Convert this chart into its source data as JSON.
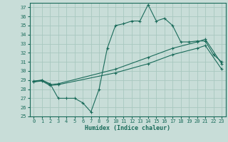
{
  "xlabel": "Humidex (Indice chaleur)",
  "xlim": [
    -0.5,
    23.5
  ],
  "ylim": [
    25,
    37.5
  ],
  "yticks": [
    25,
    26,
    27,
    28,
    29,
    30,
    31,
    32,
    33,
    34,
    35,
    36,
    37
  ],
  "xticks": [
    0,
    1,
    2,
    3,
    4,
    5,
    6,
    7,
    8,
    9,
    10,
    11,
    12,
    13,
    14,
    15,
    16,
    17,
    18,
    19,
    20,
    21,
    22,
    23
  ],
  "bg_color": "#c8ddd8",
  "grid_color": "#a8c8c0",
  "line_color": "#1a6b5a",
  "series1_x": [
    0,
    1,
    2,
    3,
    4,
    5,
    6,
    7,
    8,
    9,
    10,
    11,
    12,
    13,
    14,
    15,
    16,
    17,
    18,
    19,
    20,
    21,
    22,
    23
  ],
  "series1_y": [
    28.8,
    29.0,
    28.6,
    27.0,
    27.0,
    27.0,
    26.5,
    25.5,
    28.0,
    32.5,
    35.0,
    35.2,
    35.5,
    35.5,
    37.3,
    35.5,
    35.8,
    35.0,
    33.2,
    33.2,
    33.3,
    33.3,
    31.8,
    31.0
  ],
  "series2_x": [
    0,
    1,
    2,
    3,
    10,
    14,
    17,
    20,
    21,
    23
  ],
  "series2_y": [
    28.9,
    29.0,
    28.5,
    28.6,
    30.2,
    31.5,
    32.5,
    33.2,
    33.5,
    30.8
  ],
  "series3_x": [
    0,
    1,
    2,
    3,
    10,
    14,
    17,
    20,
    21,
    23
  ],
  "series3_y": [
    28.8,
    28.9,
    28.4,
    28.5,
    29.8,
    30.8,
    31.8,
    32.5,
    32.8,
    30.2
  ]
}
